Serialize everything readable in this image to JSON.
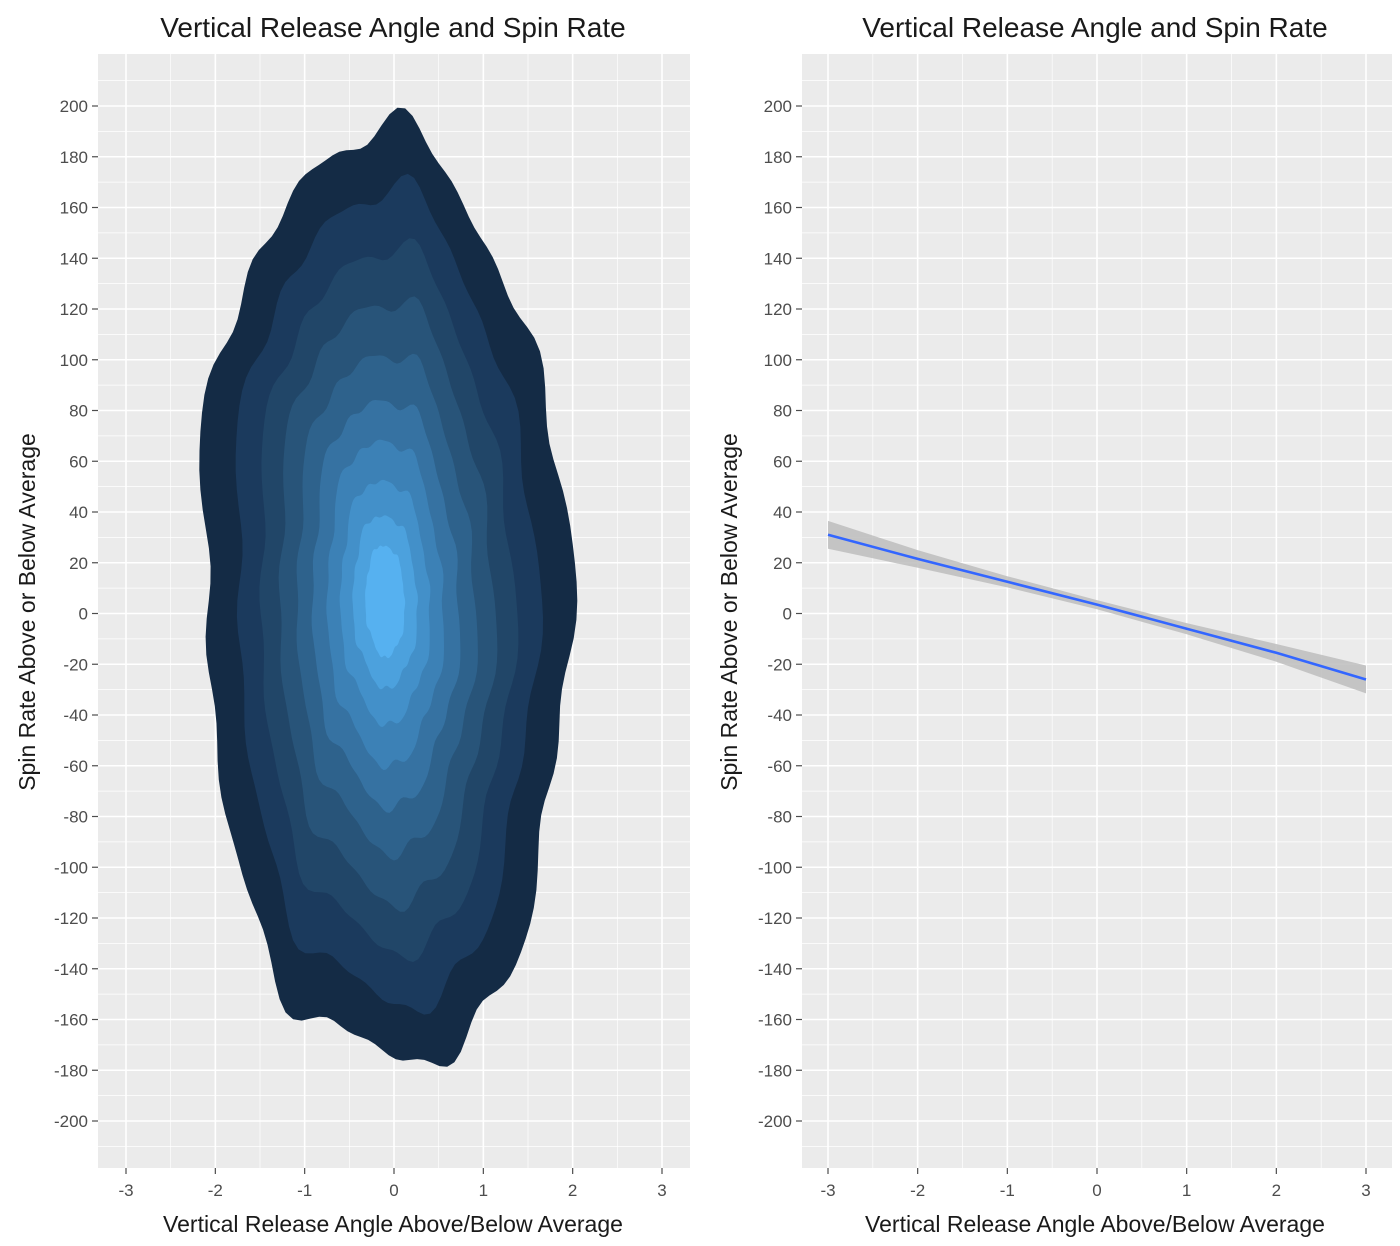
{
  "chart_data": [
    {
      "type": "density-contour",
      "title": "Vertical Release Angle and Spin Rate",
      "xlabel": "Vertical Release Angle Above/Below Average",
      "ylabel": "Spin Rate Above or Below Average",
      "xlim": [
        -3.3,
        3.3
      ],
      "ylim": [
        -220,
        220
      ],
      "xticks": [
        -3,
        -2,
        -1,
        0,
        1,
        2,
        3
      ],
      "yticks": [
        200,
        180,
        160,
        140,
        120,
        100,
        80,
        60,
        40,
        20,
        0,
        -20,
        -40,
        -60,
        -80,
        -100,
        -120,
        -140,
        -160,
        -180,
        -200
      ],
      "grid": true,
      "legend": "none",
      "center": {
        "x": -0.1,
        "y": 5
      },
      "outer_extent": {
        "x": [
          -2.1,
          2.05
        ],
        "y": [
          -187,
          187
        ]
      },
      "levels": [
        {
          "level": 1,
          "color": "#142b45",
          "rx": 2.05,
          "ry": 183
        },
        {
          "level": 2,
          "color": "#1b3a5d",
          "rx": 1.68,
          "ry": 160
        },
        {
          "level": 3,
          "color": "#214668",
          "rx": 1.42,
          "ry": 138
        },
        {
          "level": 4,
          "color": "#285479",
          "rx": 1.2,
          "ry": 118
        },
        {
          "level": 5,
          "color": "#2e628c",
          "rx": 1.0,
          "ry": 98
        },
        {
          "level": 6,
          "color": "#3672a2",
          "rx": 0.82,
          "ry": 80
        },
        {
          "level": 7,
          "color": "#3c81b6",
          "rx": 0.65,
          "ry": 64
        },
        {
          "level": 8,
          "color": "#4390c9",
          "rx": 0.5,
          "ry": 48
        },
        {
          "level": 9,
          "color": "#4ca1dd",
          "rx": 0.36,
          "ry": 34
        },
        {
          "level": 10,
          "color": "#56b1f0",
          "rx": 0.22,
          "ry": 22
        }
      ]
    },
    {
      "type": "line",
      "title": "Vertical Release Angle and Spin Rate",
      "xlabel": "Vertical Release Angle Above/Below Average",
      "ylabel": "Spin Rate Above or Below Average",
      "xlim": [
        -3.3,
        3.3
      ],
      "ylim": [
        -220,
        220
      ],
      "xticks": [
        -3,
        -2,
        -1,
        0,
        1,
        2,
        3
      ],
      "yticks": [
        200,
        180,
        160,
        140,
        120,
        100,
        80,
        60,
        40,
        20,
        0,
        -20,
        -40,
        -60,
        -80,
        -100,
        -120,
        -140,
        -160,
        -180,
        -200
      ],
      "grid": true,
      "legend": "none",
      "line_color": "#3366ff",
      "ribbon_color": "#bdbdbd",
      "x": [
        -3,
        -2,
        -1,
        0,
        1,
        2,
        3
      ],
      "y": [
        31,
        21.5,
        12.5,
        3.5,
        -6,
        -15.5,
        -26
      ],
      "ci_half_width": [
        5.5,
        3.5,
        2.2,
        1.8,
        2.2,
        3.5,
        5.5
      ]
    }
  ]
}
